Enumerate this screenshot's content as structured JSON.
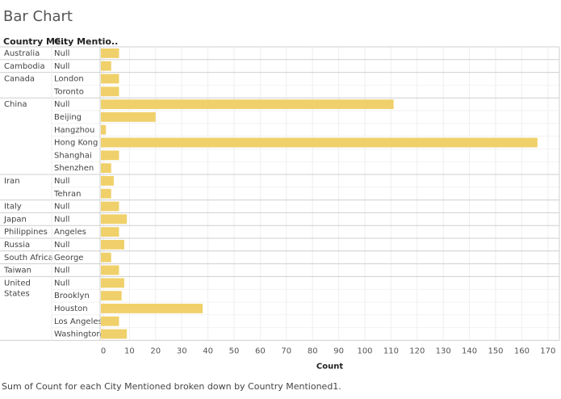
{
  "page": {
    "caption": "Sum of Count for each City Mentioned broken down by Country Mentioned1."
  },
  "chart_data": {
    "type": "bar",
    "orientation": "horizontal",
    "title": "Bar Chart",
    "row_headers": [
      "Country Me..",
      "City Mentio.."
    ],
    "xlabel": "Count",
    "ylabel": "",
    "xlim": [
      0,
      170
    ],
    "xticks": [
      0,
      10,
      20,
      30,
      40,
      50,
      60,
      70,
      80,
      90,
      100,
      110,
      120,
      130,
      140,
      150,
      160,
      170
    ],
    "grid": true,
    "bar_color": "#f0d06a",
    "groups": [
      {
        "country": "Australia",
        "rows": [
          {
            "city": "Null",
            "value": 6
          }
        ]
      },
      {
        "country": "Cambodia",
        "rows": [
          {
            "city": "Null",
            "value": 3
          }
        ]
      },
      {
        "country": "Canada",
        "rows": [
          {
            "city": "London",
            "value": 6
          },
          {
            "city": "Toronto",
            "value": 6
          }
        ]
      },
      {
        "country": "China",
        "rows": [
          {
            "city": "Null",
            "value": 111
          },
          {
            "city": "Beijing",
            "value": 20
          },
          {
            "city": "Hangzhou",
            "value": 1
          },
          {
            "city": "Hong Kong",
            "value": 166
          },
          {
            "city": "Shanghai",
            "value": 6
          },
          {
            "city": "Shenzhen",
            "value": 3
          }
        ]
      },
      {
        "country": "Iran",
        "rows": [
          {
            "city": "Null",
            "value": 4
          },
          {
            "city": "Tehran",
            "value": 3
          }
        ]
      },
      {
        "country": "Italy",
        "rows": [
          {
            "city": "Null",
            "value": 6
          }
        ]
      },
      {
        "country": "Japan",
        "rows": [
          {
            "city": "Null",
            "value": 9
          }
        ]
      },
      {
        "country": "Philippines",
        "rows": [
          {
            "city": "Angeles",
            "value": 6
          }
        ]
      },
      {
        "country": "Russia",
        "rows": [
          {
            "city": "Null",
            "value": 8
          }
        ]
      },
      {
        "country": "South Africa",
        "rows": [
          {
            "city": "George",
            "value": 3
          }
        ]
      },
      {
        "country": "Taiwan",
        "rows": [
          {
            "city": "Null",
            "value": 6
          }
        ]
      },
      {
        "country": "United States",
        "rows": [
          {
            "city": "Null",
            "value": 8
          },
          {
            "city": "Brooklyn",
            "value": 7
          },
          {
            "city": "Houston",
            "value": 38
          },
          {
            "city": "Los Angeles",
            "value": 6
          },
          {
            "city": "Washington",
            "value": 9
          }
        ]
      }
    ]
  }
}
